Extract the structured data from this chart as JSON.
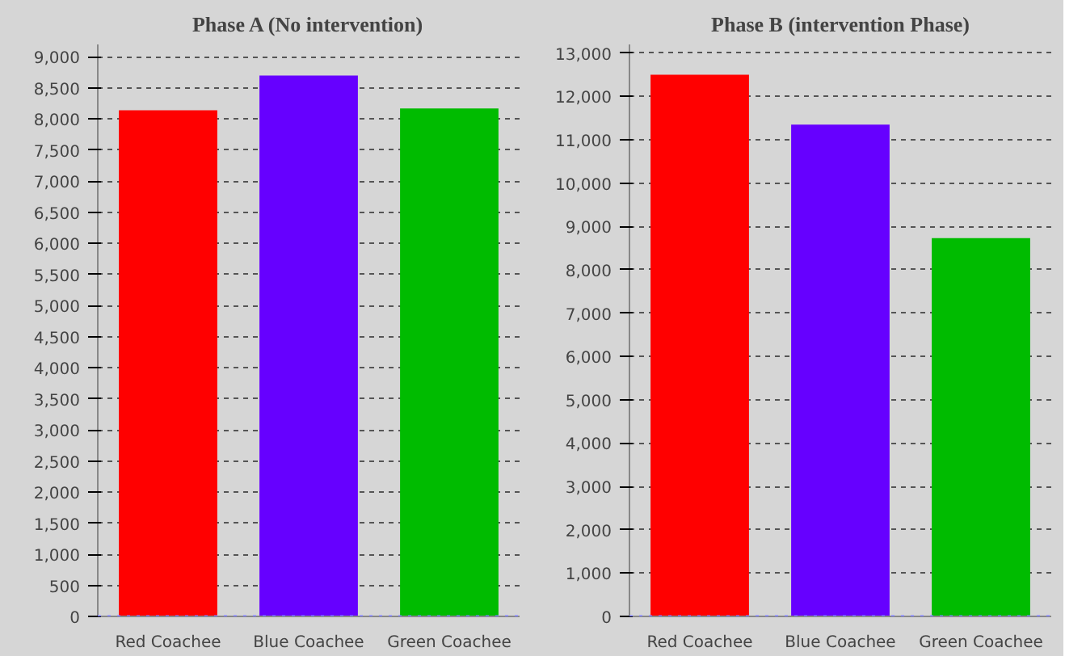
{
  "chart_data": [
    {
      "type": "bar",
      "title": "Phase A (No intervention)",
      "categories": [
        "Red Coachee",
        "Blue Coachee",
        "Green Coachee"
      ],
      "values": [
        8140,
        8700,
        8170
      ],
      "colors": [
        "#ff0000",
        "#6600ff",
        "#00bb00"
      ],
      "ylim": [
        0,
        9200
      ],
      "yticks": [
        {
          "value": 0,
          "label": "0"
        },
        {
          "value": 500,
          "label": "500"
        },
        {
          "value": 1000,
          "label": "1,000"
        },
        {
          "value": 1500,
          "label": "1,500"
        },
        {
          "value": 2000,
          "label": "2,000"
        },
        {
          "value": 2500,
          "label": "2,500"
        },
        {
          "value": 3000,
          "label": "3,000"
        },
        {
          "value": 3500,
          "label": "3,500"
        },
        {
          "value": 4000,
          "label": "4,000"
        },
        {
          "value": 4500,
          "label": "4,500"
        },
        {
          "value": 5000,
          "label": "5,000"
        },
        {
          "value": 5500,
          "label": "5,500"
        },
        {
          "value": 6000,
          "label": "6,000"
        },
        {
          "value": 6500,
          "label": "6,500"
        },
        {
          "value": 7000,
          "label": "7,000"
        },
        {
          "value": 7500,
          "label": "7,500"
        },
        {
          "value": 8000,
          "label": "8,000"
        },
        {
          "value": 8500,
          "label": "8,500"
        },
        {
          "value": 9000,
          "label": "9,000"
        }
      ],
      "grid": "y",
      "ref_lines": [
        {
          "axis": "y",
          "value": 0,
          "color": "#8080ff",
          "line_style": "dotted"
        }
      ]
    },
    {
      "type": "bar",
      "title": "Phase B (intervention Phase)",
      "categories": [
        "Red Coachee",
        "Blue Coachee",
        "Green Coachee"
      ],
      "values": [
        12500,
        11350,
        8730
      ],
      "colors": [
        "#ff0000",
        "#6600ff",
        "#00bb00"
      ],
      "ylim": [
        0,
        13200
      ],
      "yticks": [
        {
          "value": 0,
          "label": "0"
        },
        {
          "value": 1000,
          "label": "1,000"
        },
        {
          "value": 2000,
          "label": "2,000"
        },
        {
          "value": 3000,
          "label": "3,000"
        },
        {
          "value": 4000,
          "label": "4,000"
        },
        {
          "value": 5000,
          "label": "5,000"
        },
        {
          "value": 6000,
          "label": "6,000"
        },
        {
          "value": 7000,
          "label": "7,000"
        },
        {
          "value": 8000,
          "label": "8,000"
        },
        {
          "value": 9000,
          "label": "9,000"
        },
        {
          "value": 10000,
          "label": "10,000"
        },
        {
          "value": 11000,
          "label": "11,000"
        },
        {
          "value": 12000,
          "label": "12,000"
        },
        {
          "value": 13000,
          "label": "13,000"
        }
      ],
      "grid": "y",
      "ref_lines": [
        {
          "axis": "y",
          "value": 0,
          "color": "#8080ff",
          "line_style": "dotted"
        }
      ]
    }
  ]
}
